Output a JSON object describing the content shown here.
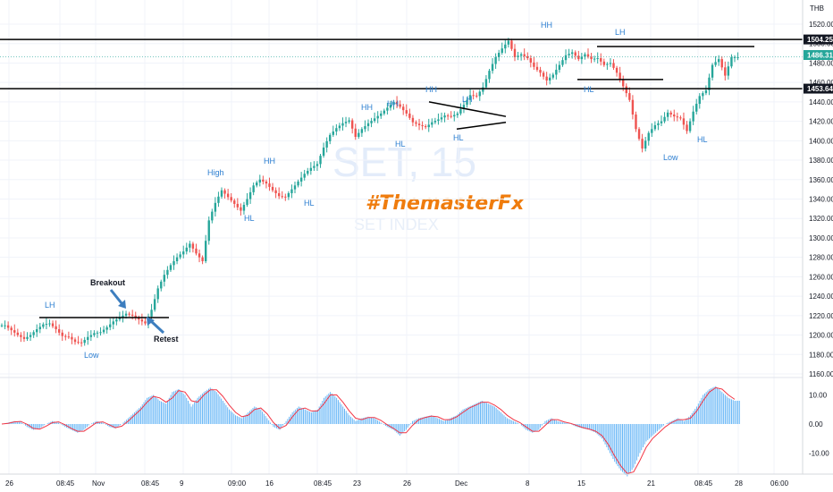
{
  "chart_data": {
    "type": "candlestick",
    "symbol_watermark": "SET, 15",
    "name_watermark": "SET INDEX",
    "brand": "#ThemasterFx",
    "currency": "THB",
    "ylim": [
      1143,
      1537
    ],
    "y_ticks": [
      1160,
      1180,
      1200,
      1220,
      1240,
      1260,
      1280,
      1300,
      1320,
      1340,
      1360,
      1380,
      1400,
      1420,
      1440,
      1460,
      1480,
      1500,
      1520
    ],
    "x_ticks": [
      "26",
      "08:45",
      "Nov",
      "08:45",
      "9",
      "09:00",
      "16",
      "08:45",
      "23",
      "26",
      "Dec",
      "8",
      "15",
      "21",
      "08:45",
      "28",
      "06:00"
    ],
    "price_series": [
      1210,
      1205,
      1200,
      1196,
      1200,
      1206,
      1211,
      1212,
      1206,
      1199,
      1198,
      1193,
      1192,
      1198,
      1202,
      1203,
      1208,
      1214,
      1218,
      1222,
      1220,
      1216,
      1212,
      1226,
      1248,
      1262,
      1272,
      1280,
      1286,
      1294,
      1284,
      1276,
      1318,
      1336,
      1349,
      1342,
      1335,
      1328,
      1340,
      1354,
      1360,
      1356,
      1349,
      1343,
      1342,
      1350,
      1358,
      1366,
      1372,
      1376,
      1393,
      1406,
      1413,
      1418,
      1421,
      1404,
      1412,
      1418,
      1423,
      1428,
      1434,
      1440,
      1435,
      1428,
      1419,
      1416,
      1414,
      1419,
      1422,
      1426,
      1425,
      1428,
      1437,
      1447,
      1446,
      1455,
      1472,
      1486,
      1495,
      1503,
      1486,
      1489,
      1485,
      1476,
      1470,
      1462,
      1468,
      1478,
      1488,
      1491,
      1484,
      1489,
      1484,
      1485,
      1478,
      1480,
      1470,
      1456,
      1442,
      1412,
      1392,
      1408,
      1416,
      1420,
      1429,
      1425,
      1423,
      1410,
      1430,
      1446,
      1452,
      1478,
      1484,
      1467,
      1486,
      1486
    ],
    "macd_series": [
      0,
      0.5,
      1,
      0.8,
      -1,
      -2,
      -1.5,
      0,
      1,
      0.5,
      -1,
      -2,
      -3,
      -2,
      0,
      1,
      0.5,
      -1,
      -1.5,
      0,
      2,
      4,
      6,
      9,
      10,
      8,
      7,
      11,
      12,
      10,
      6,
      9,
      11,
      12.5,
      11,
      8,
      5,
      3,
      2,
      4,
      6,
      5,
      2,
      -1,
      -2,
      1,
      4,
      6,
      5,
      4,
      5,
      9,
      11,
      9,
      6,
      3,
      1,
      2,
      2.5,
      2,
      0.5,
      -1,
      -2,
      -4,
      -2,
      1,
      2,
      2.5,
      3,
      2,
      1,
      2,
      3,
      5,
      6,
      7,
      8,
      7,
      6,
      4,
      2,
      1,
      0,
      -2,
      -3,
      -2,
      1,
      2,
      1,
      0.5,
      0,
      -1,
      -1.5,
      -2,
      -3,
      -5,
      -9,
      -13,
      -16,
      -18,
      -15,
      -10,
      -6,
      -4,
      -2,
      0,
      1,
      2,
      1,
      3,
      6,
      10,
      12,
      13,
      11,
      9,
      8
    ],
    "macd_ticks": [
      10.0,
      0.0,
      -10.0
    ],
    "current_price": "1486.31",
    "levels": [
      {
        "value": 1504.25,
        "label": "1504.25",
        "color": "#000000"
      },
      {
        "value": 1453.64,
        "label": "1453.64",
        "color": "#000000"
      }
    ],
    "annotations": {
      "lh1": "LH",
      "low1": "Low",
      "breakout": "Breakout",
      "retest": "Retest",
      "high": "High",
      "hl1": "HL",
      "hh1": "HH",
      "hl2": "HL",
      "hh2": "HH",
      "hh3": "HH",
      "hl3": "HL",
      "hh4": "HH",
      "lh2": "LH",
      "hl4": "HL",
      "hh5": "HH",
      "lh3": "LH",
      "hl5": "HL",
      "low2": "Low",
      "hl6": "HL"
    }
  },
  "colors": {
    "up": "#26a69a",
    "down": "#ef5350",
    "macd_hist": "#64b5f6",
    "signal": "#f23645",
    "price_tag": "#26a69a"
  }
}
